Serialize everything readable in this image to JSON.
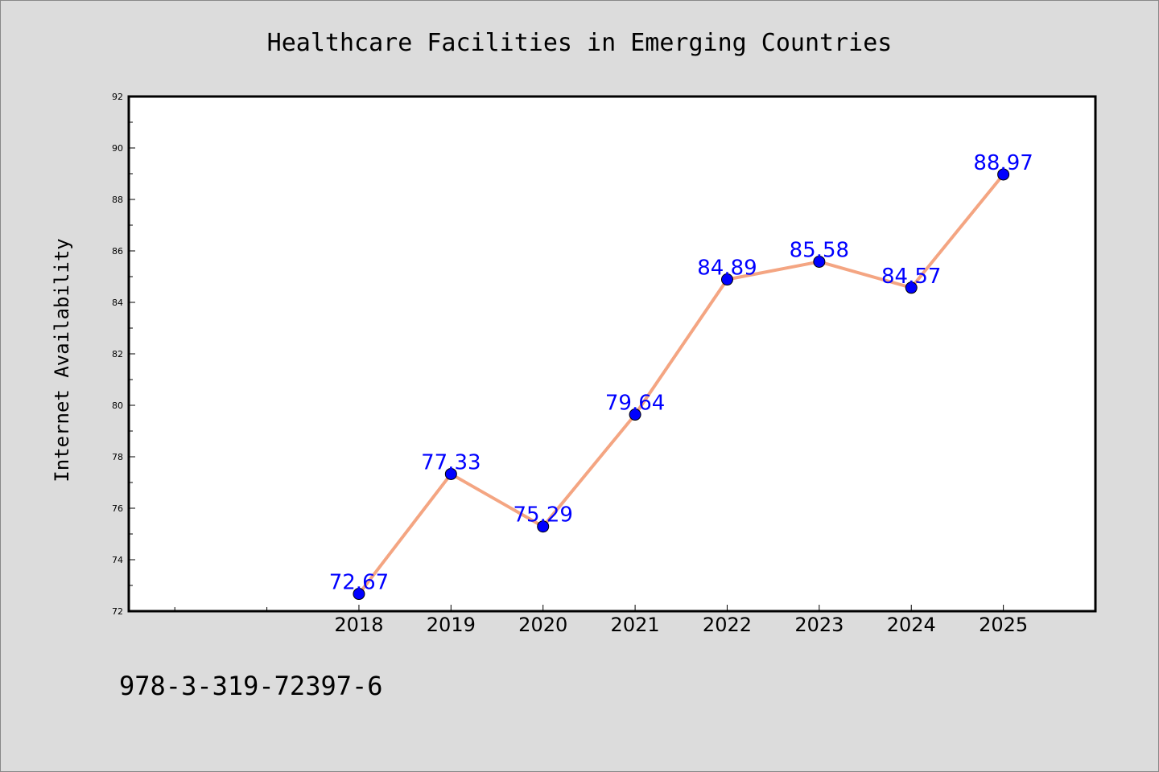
{
  "footer_code": "978-3-319-72397-6",
  "colors": {
    "background": "#dcdcdc",
    "plot_background": "#ffffff",
    "line": "#f4a582",
    "marker": "#0000ff",
    "data_label": "#0000ff"
  },
  "chart_data": {
    "type": "line",
    "title": "Healthcare Facilities in Emerging Countries",
    "xlabel": "",
    "ylabel": "Internet Availability",
    "categories": [
      "2018",
      "2019",
      "2020",
      "2021",
      "2022",
      "2023",
      "2024",
      "2025"
    ],
    "x_extra_minor_ticks": 2,
    "series": [
      {
        "values": [
          72.67,
          77.33,
          75.29,
          79.64,
          84.89,
          85.58,
          84.57,
          88.97
        ]
      }
    ],
    "data_labels": [
      "72.67",
      "77.33",
      "75.29",
      "79.64",
      "84.89",
      "85.58",
      "84.57",
      "88.97"
    ],
    "ylim": [
      72,
      92
    ],
    "yticks": [
      72,
      74,
      76,
      78,
      80,
      82,
      84,
      86,
      88,
      90,
      92
    ],
    "grid": false,
    "legend": "none"
  }
}
